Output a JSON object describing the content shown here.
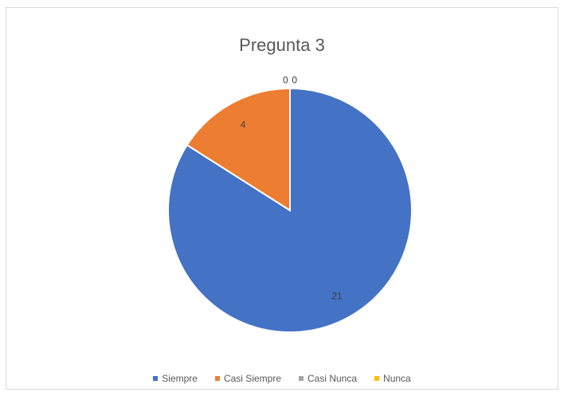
{
  "chart_data": {
    "type": "pie",
    "title": "Pregunta 3",
    "categories": [
      "Siempre",
      "Casi Siempre",
      "Casi Nunca",
      "Nunca"
    ],
    "values": [
      21,
      4,
      0,
      0
    ],
    "data_labels": [
      "21",
      "4",
      "0",
      "0"
    ],
    "colors": [
      "#4472c4",
      "#ed7d31",
      "#a5a5a5",
      "#ffc000"
    ],
    "legend_position": "bottom"
  }
}
